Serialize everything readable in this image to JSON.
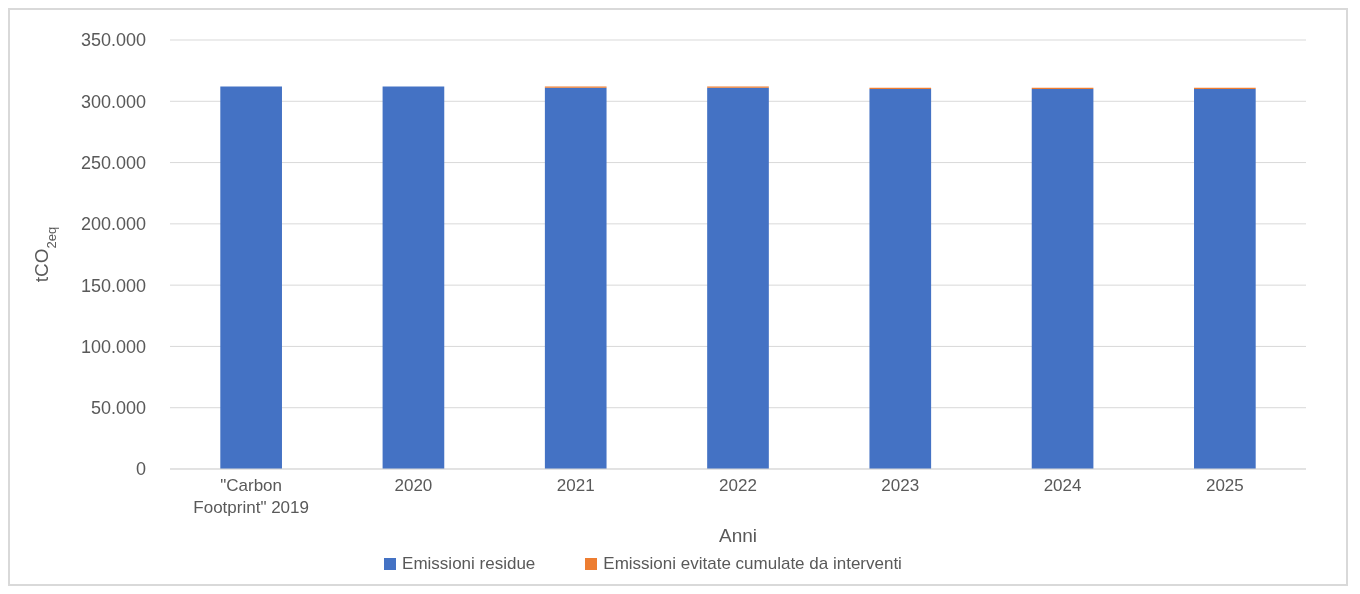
{
  "chart_data": {
    "type": "bar",
    "stacked": true,
    "xlabel": "Anni",
    "ylabel": "tCO$_{2eq}$",
    "categories": [
      "\"Carbon Footprint\" 2019",
      "2020",
      "2021",
      "2022",
      "2023",
      "2024",
      "2025"
    ],
    "series": [
      {
        "name": "Emissioni residue",
        "color": "#4472c4",
        "values": [
          312000,
          312000,
          311000,
          311000,
          310000,
          310000,
          310000
        ]
      },
      {
        "name": "Emissioni evitate cumulate da interventi",
        "color": "#ed7d31",
        "values": [
          0,
          0,
          1000,
          1000,
          1000,
          1000,
          1000
        ]
      }
    ],
    "ylim": [
      0,
      350000
    ],
    "yticks": [
      0,
      {
        "value": 50000,
        "label": "50.000"
      },
      {
        "value": 100000,
        "label": "100.000"
      },
      {
        "value": 150000,
        "label": "150.000"
      },
      {
        "value": 200000,
        "label": "200.000"
      },
      {
        "value": 250000,
        "label": "250.000"
      },
      {
        "value": 300000,
        "label": "300.000"
      },
      {
        "value": 350000,
        "label": "350.000"
      }
    ],
    "grid": "y",
    "legend": "bottom"
  }
}
